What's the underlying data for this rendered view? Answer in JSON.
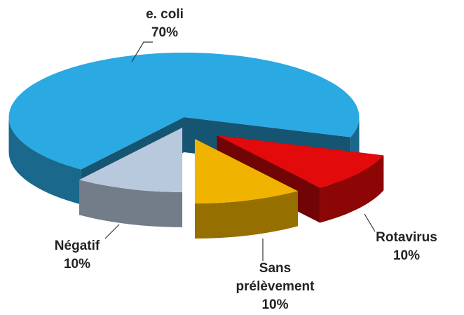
{
  "chart_data": {
    "type": "pie",
    "categories": [
      "e. coli",
      "Rotavirus",
      "Sans prélèvement",
      "Négatif"
    ],
    "values": [
      70,
      10,
      10,
      10
    ],
    "value_labels": [
      "70%",
      "10%",
      "10%",
      "10%"
    ],
    "colors": [
      "#2aa9e2",
      "#e20a0a",
      "#f0b400",
      "#b9c9dd"
    ]
  }
}
